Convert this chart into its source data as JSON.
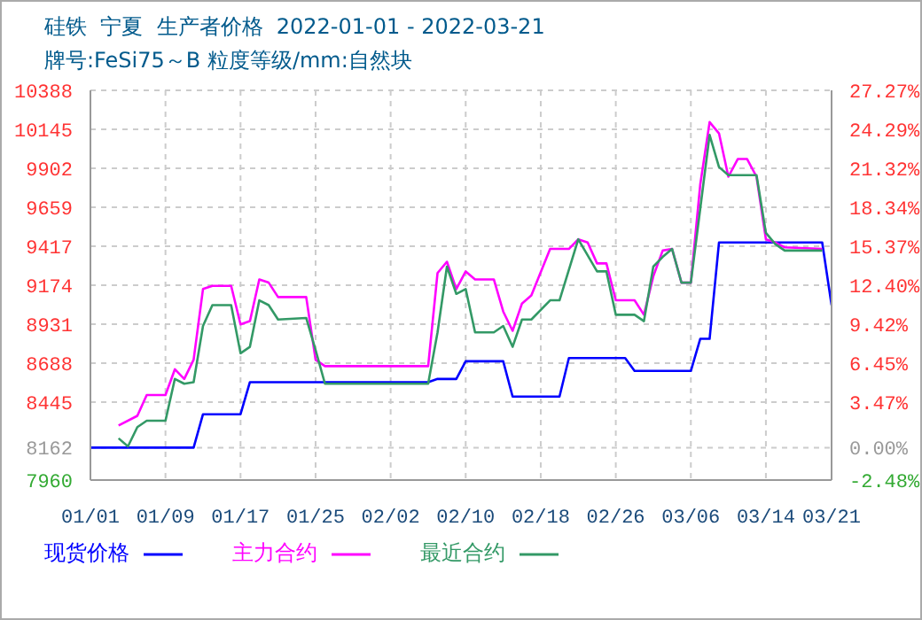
{
  "chart_data": {
    "type": "line",
    "title": "硅铁  宁夏  生产者价格  2022-01-01 - 2022-03-21",
    "subtitle": "牌号:FeSi75～B 粒度等级/mm:自然块",
    "xlim": [
      "2022-01-01",
      "2022-03-21"
    ],
    "xticks": [
      {
        "value": "2022-01-01",
        "label": "01/01"
      },
      {
        "value": "2022-01-09",
        "label": "01/09"
      },
      {
        "value": "2022-01-17",
        "label": "01/17"
      },
      {
        "value": "2022-01-25",
        "label": "01/25"
      },
      {
        "value": "2022-02-02",
        "label": "02/02"
      },
      {
        "value": "2022-02-10",
        "label": "02/10"
      },
      {
        "value": "2022-02-18",
        "label": "02/18"
      },
      {
        "value": "2022-02-26",
        "label": "02/26"
      },
      {
        "value": "2022-03-06",
        "label": "03/06"
      },
      {
        "value": "2022-03-14",
        "label": "03/14"
      },
      {
        "value": "2022-03-21",
        "label": "03/21"
      }
    ],
    "ylim": [
      7960,
      10388
    ],
    "yticks": [
      7960,
      8162,
      8445,
      8688,
      8931,
      9174,
      9417,
      9659,
      9902,
      10145,
      10388
    ],
    "y2lim": [
      -2.48,
      27.27
    ],
    "y2ticks": [
      {
        "value": -2.48,
        "label": "-2.48%"
      },
      {
        "value": 0,
        "label": "0.00%"
      },
      {
        "value": 3.47,
        "label": "3.47%"
      },
      {
        "value": 6.45,
        "label": "6.45%"
      },
      {
        "value": 9.42,
        "label": "9.42%"
      },
      {
        "value": 12.4,
        "label": "12.40%"
      },
      {
        "value": 15.37,
        "label": "15.37%"
      },
      {
        "value": 18.34,
        "label": "18.34%"
      },
      {
        "value": 21.32,
        "label": "21.32%"
      },
      {
        "value": 24.29,
        "label": "24.29%"
      },
      {
        "value": 27.27,
        "label": "27.27%"
      }
    ],
    "grid": true,
    "legend": "bottom",
    "marker": "none",
    "series": [
      {
        "name": "现货价格",
        "color": "#0000ff",
        "x": [
          "2022-01-01",
          "2022-01-12",
          "2022-01-13",
          "2022-01-17",
          "2022-01-18",
          "2022-02-06",
          "2022-02-07",
          "2022-02-09",
          "2022-02-10",
          "2022-02-14",
          "2022-02-15",
          "2022-02-20",
          "2022-02-21",
          "2022-02-27",
          "2022-02-28",
          "2022-03-06",
          "2022-03-07",
          "2022-03-08",
          "2022-03-09",
          "2022-03-20",
          "2022-03-21"
        ],
        "values": [
          8162,
          8162,
          8370,
          8370,
          8570,
          8570,
          8590,
          8590,
          8700,
          8700,
          8480,
          8480,
          8720,
          8720,
          8640,
          8640,
          8840,
          8840,
          9440,
          9440,
          9050
        ]
      },
      {
        "name": "主力合约",
        "color": "#ff00ff",
        "x": [
          "2022-01-04",
          "2022-01-06",
          "2022-01-07",
          "2022-01-09",
          "2022-01-10",
          "2022-01-11",
          "2022-01-12",
          "2022-01-13",
          "2022-01-14",
          "2022-01-16",
          "2022-01-17",
          "2022-01-18",
          "2022-01-19",
          "2022-01-20",
          "2022-01-21",
          "2022-01-24",
          "2022-01-25",
          "2022-01-26",
          "2022-02-06",
          "2022-02-07",
          "2022-02-08",
          "2022-02-09",
          "2022-02-10",
          "2022-02-11",
          "2022-02-13",
          "2022-02-14",
          "2022-02-15",
          "2022-02-16",
          "2022-02-17",
          "2022-02-19",
          "2022-02-21",
          "2022-02-22",
          "2022-02-23",
          "2022-02-24",
          "2022-02-25",
          "2022-02-26",
          "2022-02-28",
          "2022-03-01",
          "2022-03-02",
          "2022-03-03",
          "2022-03-04",
          "2022-03-05",
          "2022-03-06",
          "2022-03-07",
          "2022-03-08",
          "2022-03-09",
          "2022-03-10",
          "2022-03-11",
          "2022-03-12",
          "2022-03-13",
          "2022-03-14",
          "2022-03-15",
          "2022-03-16",
          "2022-03-20"
        ],
        "values": [
          8300,
          8360,
          8490,
          8490,
          8650,
          8590,
          8710,
          9150,
          9170,
          9170,
          8930,
          8950,
          9210,
          9190,
          9100,
          9100,
          8710,
          8670,
          8670,
          9250,
          9320,
          9150,
          9260,
          9210,
          9210,
          9010,
          8890,
          9060,
          9110,
          9400,
          9400,
          9460,
          9440,
          9310,
          9310,
          9080,
          9080,
          8990,
          9230,
          9390,
          9400,
          9190,
          9190,
          9800,
          10190,
          10120,
          9850,
          9960,
          9960,
          9850,
          9460,
          9440,
          9410,
          9400
        ]
      },
      {
        "name": "最近合约",
        "color": "#339966",
        "x": [
          "2022-01-04",
          "2022-01-05",
          "2022-01-06",
          "2022-01-07",
          "2022-01-09",
          "2022-01-10",
          "2022-01-11",
          "2022-01-12",
          "2022-01-13",
          "2022-01-14",
          "2022-01-16",
          "2022-01-17",
          "2022-01-18",
          "2022-01-19",
          "2022-01-20",
          "2022-01-21",
          "2022-01-24",
          "2022-01-25",
          "2022-01-26",
          "2022-02-06",
          "2022-02-07",
          "2022-02-08",
          "2022-02-09",
          "2022-02-10",
          "2022-02-11",
          "2022-02-13",
          "2022-02-14",
          "2022-02-15",
          "2022-02-16",
          "2022-02-17",
          "2022-02-19",
          "2022-02-20",
          "2022-02-22",
          "2022-02-24",
          "2022-02-25",
          "2022-02-26",
          "2022-02-28",
          "2022-03-01",
          "2022-03-02",
          "2022-03-03",
          "2022-03-04",
          "2022-03-05",
          "2022-03-06",
          "2022-03-07",
          "2022-03-08",
          "2022-03-09",
          "2022-03-10",
          "2022-03-13",
          "2022-03-14",
          "2022-03-15",
          "2022-03-16",
          "2022-03-20"
        ],
        "values": [
          8220,
          8170,
          8290,
          8330,
          8330,
          8590,
          8560,
          8570,
          8920,
          9050,
          9050,
          8750,
          8790,
          9080,
          9050,
          8960,
          8970,
          8770,
          8560,
          8560,
          8880,
          9290,
          9120,
          9150,
          8880,
          8880,
          8920,
          8790,
          8960,
          8960,
          9080,
          9080,
          9460,
          9260,
          9260,
          8990,
          8990,
          8950,
          9290,
          9350,
          9400,
          9190,
          9190,
          9650,
          10110,
          9910,
          9860,
          9860,
          9500,
          9430,
          9390,
          9390
        ]
      }
    ]
  }
}
